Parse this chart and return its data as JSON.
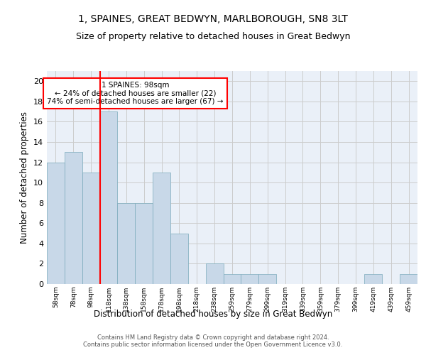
{
  "title1": "1, SPAINES, GREAT BEDWYN, MARLBOROUGH, SN8 3LT",
  "title2": "Size of property relative to detached houses in Great Bedwyn",
  "xlabel": "Distribution of detached houses by size in Great Bedwyn",
  "ylabel": "Number of detached properties",
  "categories": [
    "58sqm",
    "78sqm",
    "98sqm",
    "118sqm",
    "138sqm",
    "158sqm",
    "178sqm",
    "198sqm",
    "218sqm",
    "238sqm",
    "259sqm",
    "279sqm",
    "299sqm",
    "319sqm",
    "339sqm",
    "359sqm",
    "379sqm",
    "399sqm",
    "419sqm",
    "439sqm",
    "459sqm"
  ],
  "values": [
    12,
    13,
    11,
    17,
    8,
    8,
    11,
    5,
    0,
    2,
    1,
    1,
    1,
    0,
    0,
    0,
    0,
    0,
    1,
    0,
    1
  ],
  "bar_color": "#c8d8e8",
  "bar_edge_color": "#7aaabb",
  "red_line_x": 2.5,
  "annotation_text": "1 SPAINES: 98sqm\n← 24% of detached houses are smaller (22)\n74% of semi-detached houses are larger (67) →",
  "annotation_box_color": "white",
  "annotation_box_edge_color": "red",
  "ylim": [
    0,
    21
  ],
  "yticks": [
    0,
    2,
    4,
    6,
    8,
    10,
    12,
    14,
    16,
    18,
    20
  ],
  "grid_color": "#cccccc",
  "bg_color": "#eaf0f8",
  "footer_line1": "Contains HM Land Registry data © Crown copyright and database right 2024.",
  "footer_line2": "Contains public sector information licensed under the Open Government Licence v3.0.",
  "title1_fontsize": 10,
  "title2_fontsize": 9,
  "xlabel_fontsize": 8.5,
  "ylabel_fontsize": 8.5,
  "annot_fontsize": 7.5
}
